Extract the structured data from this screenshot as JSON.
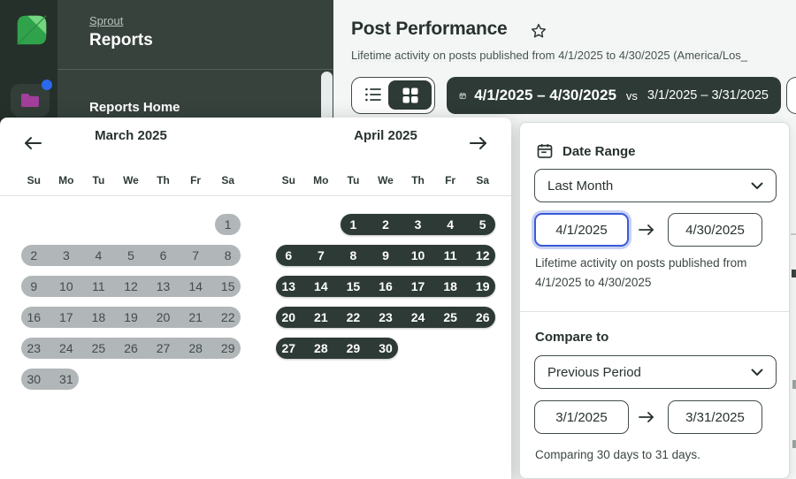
{
  "sidebar": {
    "brand": "Sprout",
    "title": "Reports",
    "nav_home": "Reports Home"
  },
  "header": {
    "title": "Post Performance",
    "subtitle": "Lifetime activity on posts published from 4/1/2025 to 4/30/2025 (America/Los_"
  },
  "toolbar": {
    "date_primary": "4/1/2025 – 4/30/2025",
    "vs_label": "vs",
    "date_secondary": "3/1/2025 – 3/31/2025"
  },
  "calendar": {
    "months": [
      {
        "title": "March 2025",
        "style": "muted",
        "weekdays": [
          "Su",
          "Mo",
          "Tu",
          "We",
          "Th",
          "Fr",
          "Sa"
        ],
        "weeks": [
          {
            "start": 7,
            "days": [
              "1"
            ]
          },
          {
            "start": 1,
            "days": [
              "2",
              "3",
              "4",
              "5",
              "6",
              "7",
              "8"
            ]
          },
          {
            "start": 1,
            "days": [
              "9",
              "10",
              "11",
              "12",
              "13",
              "14",
              "15"
            ]
          },
          {
            "start": 1,
            "days": [
              "16",
              "17",
              "18",
              "19",
              "20",
              "21",
              "22"
            ]
          },
          {
            "start": 1,
            "days": [
              "23",
              "24",
              "25",
              "26",
              "27",
              "28",
              "29"
            ]
          },
          {
            "start": 1,
            "days": [
              "30",
              "31"
            ]
          }
        ]
      },
      {
        "title": "April 2025",
        "style": "selected",
        "weekdays": [
          "Su",
          "Mo",
          "Tu",
          "We",
          "Th",
          "Fr",
          "Sa"
        ],
        "weeks": [
          {
            "start": 3,
            "days": [
              "1",
              "2",
              "3",
              "4",
              "5"
            ]
          },
          {
            "start": 1,
            "days": [
              "6",
              "7",
              "8",
              "9",
              "10",
              "11",
              "12"
            ]
          },
          {
            "start": 1,
            "days": [
              "13",
              "14",
              "15",
              "16",
              "17",
              "18",
              "19"
            ]
          },
          {
            "start": 1,
            "days": [
              "20",
              "21",
              "22",
              "23",
              "24",
              "25",
              "26"
            ]
          },
          {
            "start": 1,
            "days": [
              "27",
              "28",
              "29",
              "30"
            ]
          }
        ]
      }
    ]
  },
  "panel": {
    "date_range": {
      "title": "Date Range",
      "preset": "Last Month",
      "start": "4/1/2025",
      "end": "4/30/2025",
      "helper_line1": "Lifetime activity on posts published from",
      "helper_line2": "4/1/2025 to 4/30/2025"
    },
    "compare": {
      "title": "Compare to",
      "preset": "Previous Period",
      "start": "3/1/2025",
      "end": "3/31/2025",
      "helper": "Comparing 30 days to 31 days."
    }
  },
  "colors": {
    "accent_dark": "#2d3a36",
    "selected_range": "#2d3a36",
    "compare_range_muted": "#b1b6b8",
    "focus_blue": "#3b5bd7",
    "focus_ring": "#c7d1f4",
    "brand_green": "#31a24c",
    "brand_green_light": "#74d680",
    "folder_purple": "#a23f9c",
    "notification_blue": "#2b69ec",
    "sidebar_rail": "#25302b",
    "sidebar_panel": "#37423d"
  }
}
